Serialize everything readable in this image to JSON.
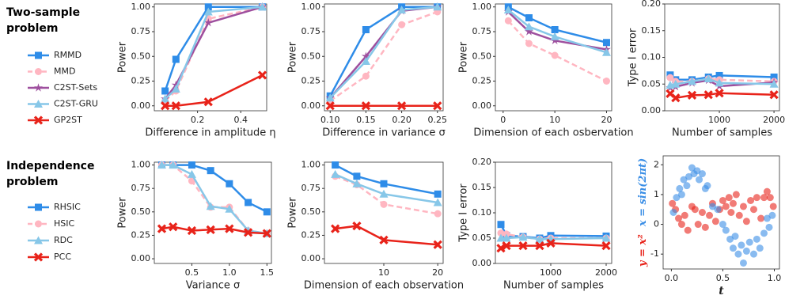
{
  "groups": [
    {
      "title": "Two-sample problem"
    },
    {
      "title": "Independence problem"
    }
  ],
  "chart_data": [
    {
      "type": "line",
      "x_label": "Difference in amplitude η",
      "y_label": "Power",
      "x": [
        0.05,
        0.1,
        0.25,
        0.5
      ],
      "xlim": [
        0,
        0.52
      ],
      "ylim": [
        -0.05,
        1.03
      ],
      "xticks": [
        {
          "value": 0.2,
          "label": "0.2"
        },
        {
          "value": 0.4,
          "label": "0.4"
        }
      ],
      "yticks": [
        {
          "value": 0,
          "label": "0.00"
        },
        {
          "value": 0.25,
          "label": "0.25"
        },
        {
          "value": 0.5,
          "label": "0.50"
        },
        {
          "value": 0.75,
          "label": "0.75"
        },
        {
          "value": 1,
          "label": "1.00"
        }
      ],
      "series": [
        {
          "name": "RMMD",
          "color": "#2e8ce8",
          "marker": "s",
          "dashed": false,
          "values": [
            0.15,
            0.47,
            1.0,
            1.0
          ]
        },
        {
          "name": "MMD",
          "color": "#ffb6c1",
          "marker": "o",
          "dashed": true,
          "values": [
            0.05,
            0.15,
            0.88,
            1.0
          ]
        },
        {
          "name": "C2ST-Sets",
          "color": "#9e4f9e",
          "marker": "*",
          "dashed": false,
          "values": [
            0.07,
            0.21,
            0.84,
            1.0
          ]
        },
        {
          "name": "C2ST-GRU",
          "color": "#87c7e8",
          "marker": "^",
          "dashed": false,
          "values": [
            0.07,
            0.17,
            0.95,
            1.0
          ]
        },
        {
          "name": "GP2ST",
          "color": "#e8231a",
          "marker": "X",
          "dashed": false,
          "values": [
            0.0,
            0.0,
            0.04,
            0.31
          ]
        }
      ]
    },
    {
      "type": "line",
      "x_label": "Difference in variance σ",
      "y_label": "Power",
      "x": [
        0.1,
        0.15,
        0.2,
        0.25
      ],
      "xlim": [
        0.092,
        0.258
      ],
      "ylim": [
        -0.05,
        1.03
      ],
      "xticks": [
        {
          "value": 0.1,
          "label": "0.10"
        },
        {
          "value": 0.15,
          "label": "0.15"
        },
        {
          "value": 0.2,
          "label": "0.20"
        },
        {
          "value": 0.25,
          "label": "0.25"
        }
      ],
      "yticks": [
        {
          "value": 0,
          "label": "0.00"
        },
        {
          "value": 0.25,
          "label": "0.25"
        },
        {
          "value": 0.5,
          "label": "0.50"
        },
        {
          "value": 0.75,
          "label": "0.75"
        },
        {
          "value": 1,
          "label": "1.00"
        }
      ],
      "series": [
        {
          "name": "RMMD",
          "color": "#2e8ce8",
          "marker": "s",
          "dashed": false,
          "values": [
            0.1,
            0.77,
            1.0,
            1.0
          ]
        },
        {
          "name": "MMD",
          "color": "#ffb6c1",
          "marker": "o",
          "dashed": true,
          "values": [
            0.05,
            0.3,
            0.82,
            0.95
          ]
        },
        {
          "name": "C2ST-Sets",
          "color": "#9e4f9e",
          "marker": "*",
          "dashed": false,
          "values": [
            0.08,
            0.5,
            0.96,
            1.0
          ]
        },
        {
          "name": "C2ST-GRU",
          "color": "#87c7e8",
          "marker": "^",
          "dashed": false,
          "values": [
            0.08,
            0.45,
            0.97,
            1.0
          ]
        },
        {
          "name": "GP2ST",
          "color": "#e8231a",
          "marker": "X",
          "dashed": false,
          "values": [
            0,
            0,
            0,
            0
          ]
        }
      ]
    },
    {
      "type": "line",
      "x_label": "Dimension of each osbervation",
      "y_label": "Power",
      "x": [
        1,
        5,
        10,
        20
      ],
      "xlim": [
        -1.5,
        21
      ],
      "ylim": [
        -0.05,
        1.03
      ],
      "xticks": [
        0,
        10,
        20
      ],
      "yticks": [
        {
          "value": 0,
          "label": "0.00"
        },
        {
          "value": 0.25,
          "label": "0.25"
        },
        {
          "value": 0.5,
          "label": "0.50"
        },
        {
          "value": 0.75,
          "label": "0.75"
        },
        {
          "value": 1,
          "label": "1.00"
        }
      ],
      "series": [
        {
          "name": "RMMD",
          "color": "#2e8ce8",
          "marker": "s",
          "dashed": false,
          "values": [
            1.0,
            0.89,
            0.77,
            0.64
          ]
        },
        {
          "name": "MMD",
          "color": "#ffb6c1",
          "marker": "o",
          "dashed": true,
          "values": [
            0.86,
            0.63,
            0.51,
            0.25
          ]
        },
        {
          "name": "C2ST-Sets",
          "color": "#9e4f9e",
          "marker": "*",
          "dashed": false,
          "values": [
            0.95,
            0.75,
            0.66,
            0.57
          ]
        },
        {
          "name": "C2ST-GRU",
          "color": "#87c7e8",
          "marker": "^",
          "dashed": false,
          "values": [
            0.97,
            0.8,
            0.7,
            0.54
          ]
        }
      ]
    },
    {
      "type": "line",
      "x_label": "Number of samples",
      "y_label": "Type I error",
      "x": [
        100,
        200,
        500,
        800,
        1000,
        2000
      ],
      "xlim": [
        0,
        2100
      ],
      "ylim": [
        0,
        0.2
      ],
      "xticks": [
        1000,
        2000
      ],
      "yticks": [
        {
          "value": 0,
          "label": "0.00"
        },
        {
          "value": 0.05,
          "label": "0.05"
        },
        {
          "value": 0.1,
          "label": "0.10"
        },
        {
          "value": 0.15,
          "label": "0.15"
        },
        {
          "value": 0.2,
          "label": "0.20"
        }
      ],
      "series": [
        {
          "name": "RMMD",
          "color": "#2e8ce8",
          "marker": "s",
          "dashed": false,
          "values": [
            0.067,
            0.058,
            0.058,
            0.063,
            0.066,
            0.063
          ]
        },
        {
          "name": "MMD",
          "color": "#ffb6c1",
          "marker": "o",
          "dashed": true,
          "values": [
            0.062,
            0.055,
            0.055,
            0.06,
            0.058,
            0.055
          ]
        },
        {
          "name": "C2ST-Sets",
          "color": "#9e4f9e",
          "marker": "*",
          "dashed": false,
          "values": [
            0.043,
            0.045,
            0.052,
            0.057,
            0.046,
            0.053
          ]
        },
        {
          "name": "C2ST-GRU",
          "color": "#87c7e8",
          "marker": "^",
          "dashed": false,
          "values": [
            0.048,
            0.05,
            0.055,
            0.06,
            0.052,
            0.05
          ]
        },
        {
          "name": "GP2ST",
          "color": "#e8231a",
          "marker": "X",
          "dashed": false,
          "values": [
            0.032,
            0.024,
            0.029,
            0.03,
            0.033,
            0.03
          ]
        }
      ]
    },
    {
      "type": "line",
      "x_label": "Variance σ",
      "y_label": "Power",
      "x": [
        0.1,
        0.25,
        0.5,
        0.75,
        1.0,
        1.25,
        1.5
      ],
      "xlim": [
        0,
        1.56
      ],
      "ylim": [
        -0.05,
        1.03
      ],
      "xticks": [
        {
          "value": 0.5,
          "label": "0.5"
        },
        {
          "value": 1,
          "label": "1.0"
        },
        {
          "value": 1.5,
          "label": "1.5"
        }
      ],
      "yticks": [
        {
          "value": 0,
          "label": "0.00"
        },
        {
          "value": 0.25,
          "label": "0.25"
        },
        {
          "value": 0.5,
          "label": "0.50"
        },
        {
          "value": 0.75,
          "label": "0.75"
        },
        {
          "value": 1,
          "label": "1.00"
        }
      ],
      "series": [
        {
          "name": "RHSIC",
          "color": "#2e8ce8",
          "marker": "s",
          "dashed": false,
          "values": [
            1,
            1,
            1,
            0.94,
            0.8,
            0.6,
            0.5
          ]
        },
        {
          "name": "HSIC",
          "color": "#ffb6c1",
          "marker": "o",
          "dashed": true,
          "values": [
            1,
            1,
            0.83,
            0.55,
            0.55,
            0.3,
            0.27
          ]
        },
        {
          "name": "RDC",
          "color": "#87c7e8",
          "marker": "^",
          "dashed": false,
          "values": [
            1,
            1,
            0.9,
            0.56,
            0.53,
            0.3,
            0.27
          ]
        },
        {
          "name": "PCC",
          "color": "#e8231a",
          "marker": "X",
          "dashed": false,
          "values": [
            0.32,
            0.34,
            0.3,
            0.31,
            0.32,
            0.28,
            0.27
          ]
        }
      ]
    },
    {
      "type": "line",
      "x_label": "Dimension of each observation",
      "y_label": "Power",
      "x": [
        1,
        5,
        10,
        20
      ],
      "xlim": [
        -1,
        21
      ],
      "ylim": [
        -0.05,
        1.03
      ],
      "xticks": [
        10,
        20
      ],
      "yticks": [
        {
          "value": 0,
          "label": "0.00"
        },
        {
          "value": 0.25,
          "label": "0.25"
        },
        {
          "value": 0.5,
          "label": "0.50"
        },
        {
          "value": 0.75,
          "label": "0.75"
        },
        {
          "value": 1,
          "label": "1.00"
        }
      ],
      "series": [
        {
          "name": "RHSIC",
          "color": "#2e8ce8",
          "marker": "s",
          "dashed": false,
          "values": [
            1.0,
            0.88,
            0.8,
            0.69
          ]
        },
        {
          "name": "HSIC",
          "color": "#ffb6c1",
          "marker": "o",
          "dashed": true,
          "values": [
            0.88,
            0.79,
            0.58,
            0.48
          ]
        },
        {
          "name": "RDC",
          "color": "#87c7e8",
          "marker": "^",
          "dashed": false,
          "values": [
            0.9,
            0.8,
            0.69,
            0.6
          ]
        },
        {
          "name": "PCC",
          "color": "#e8231a",
          "marker": "X",
          "dashed": false,
          "values": [
            0.32,
            0.35,
            0.2,
            0.15
          ]
        }
      ]
    },
    {
      "type": "line",
      "x_label": "Number of samples",
      "y_label": "Type I error",
      "x": [
        100,
        200,
        500,
        800,
        1000,
        2000
      ],
      "xlim": [
        0,
        2100
      ],
      "ylim": [
        0,
        0.2
      ],
      "xticks": [
        1000,
        2000
      ],
      "yticks": [
        {
          "value": 0,
          "label": "0.00"
        },
        {
          "value": 0.05,
          "label": "0.05"
        },
        {
          "value": 0.1,
          "label": "0.10"
        },
        {
          "value": 0.15,
          "label": "0.15"
        },
        {
          "value": 0.2,
          "label": "0.20"
        }
      ],
      "series": [
        {
          "name": "RHSIC",
          "color": "#2e8ce8",
          "marker": "s",
          "dashed": false,
          "values": [
            0.077,
            0.055,
            0.053,
            0.05,
            0.055,
            0.054
          ]
        },
        {
          "name": "HSIC",
          "color": "#ffb6c1",
          "marker": "o",
          "dashed": true,
          "values": [
            0.06,
            0.058,
            0.052,
            0.048,
            0.05,
            0.05
          ]
        },
        {
          "name": "RDC",
          "color": "#87c7e8",
          "marker": "^",
          "dashed": false,
          "values": [
            0.05,
            0.05,
            0.052,
            0.048,
            0.048,
            0.05
          ]
        },
        {
          "name": "PCC",
          "color": "#e8231a",
          "marker": "X",
          "dashed": false,
          "values": [
            0.03,
            0.035,
            0.035,
            0.035,
            0.04,
            0.035
          ]
        }
      ]
    },
    {
      "type": "scatter",
      "x_label": "t",
      "xlim": [
        -0.08,
        1.05
      ],
      "ylim": [
        -1.5,
        2.3
      ],
      "xticks": [
        {
          "value": 0,
          "label": "0.0"
        },
        {
          "value": 0.5,
          "label": "0.5"
        },
        {
          "value": 1,
          "label": "1.0"
        }
      ],
      "yticks": [
        -1,
        0,
        1,
        2
      ],
      "series": [
        {
          "name": "y = x²",
          "color": "#e8231a",
          "x": [
            0.01,
            0.04,
            0.07,
            0.1,
            0.13,
            0.16,
            0.2,
            0.23,
            0.26,
            0.3,
            0.33,
            0.37,
            0.4,
            0.43,
            0.47,
            0.5,
            0.53,
            0.56,
            0.58,
            0.6,
            0.63,
            0.66,
            0.7,
            0.73,
            0.77,
            0.8,
            0.83,
            0.87,
            0.9,
            0.93,
            0.96,
            0.99
          ],
          "values": [
            0.7,
            0.5,
            0.2,
            0.0,
            0.3,
            -0.2,
            0.6,
            0.5,
            0.0,
            0.4,
            -0.1,
            0.3,
            0.7,
            0.1,
            0.5,
            0.8,
            0.6,
            0.9,
            0.4,
            0.7,
            1.0,
            0.3,
            0.6,
            0.1,
            0.8,
            0.5,
            0.9,
            0.2,
            0.9,
            1.1,
            0.9,
            0.6
          ]
        },
        {
          "name": "x = sin(2πt)",
          "color": "#3a8ee6",
          "x": [
            0.02,
            0.05,
            0.08,
            0.1,
            0.12,
            0.15,
            0.17,
            0.2,
            0.22,
            0.25,
            0.27,
            0.3,
            0.33,
            0.35,
            0.4,
            0.45,
            0.5,
            0.53,
            0.57,
            0.6,
            0.62,
            0.65,
            0.68,
            0.7,
            0.73,
            0.76,
            0.8,
            0.83,
            0.86,
            0.9,
            0.93,
            0.95,
            0.98
          ],
          "values": [
            0.4,
            0.9,
            1.2,
            1.0,
            1.5,
            1.3,
            1.6,
            1.9,
            1.7,
            1.8,
            1.5,
            1.7,
            1.2,
            1.3,
            0.6,
            0.5,
            0.0,
            -0.2,
            -0.5,
            -0.8,
            -0.4,
            -1.0,
            -0.7,
            -1.3,
            -0.9,
            -0.6,
            -1.0,
            -0.5,
            -0.8,
            -0.3,
            0.2,
            -0.1,
            0.3
          ]
        }
      ]
    }
  ]
}
